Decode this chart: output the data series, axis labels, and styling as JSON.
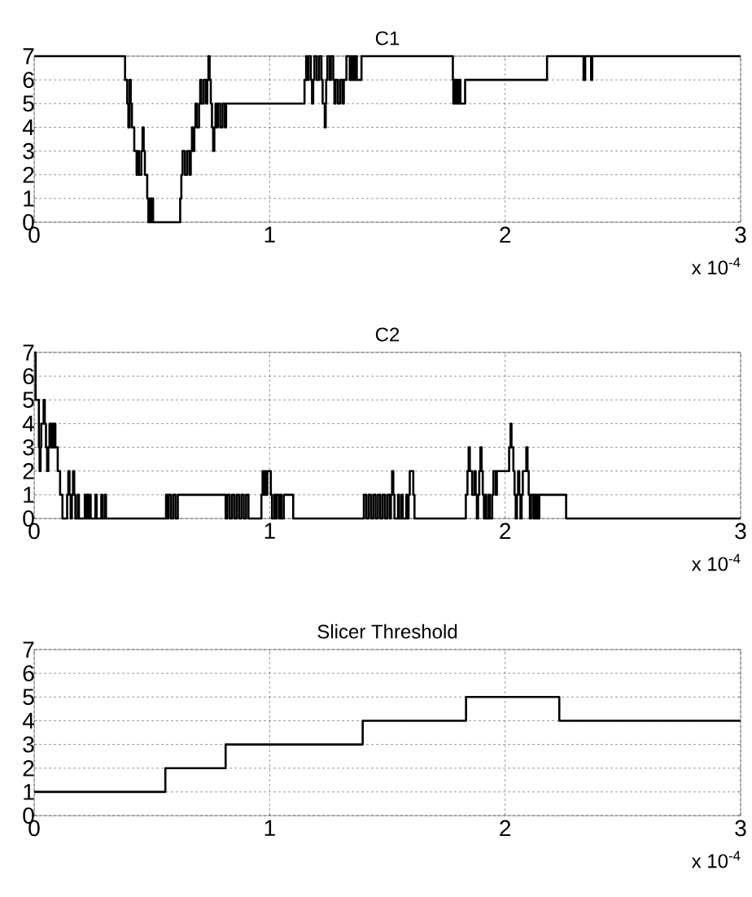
{
  "chart_data": [
    {
      "type": "step",
      "title": "C1",
      "xlabel": "x 10$^{-4}$",
      "xlim": [
        0,
        3
      ],
      "xticks": [
        0,
        1,
        2,
        3
      ],
      "ylim": [
        0,
        7
      ],
      "yticks": [
        0,
        1,
        2,
        3,
        4,
        5,
        6,
        7
      ],
      "grid": true,
      "series": [
        {
          "color": "#000000",
          "x": [
            0,
            0.386,
            0.395,
            0.4,
            0.405,
            0.41,
            0.415,
            0.425,
            0.435,
            0.44,
            0.445,
            0.455,
            0.46,
            0.465,
            0.47,
            0.48,
            0.485,
            0.49,
            0.495,
            0.5,
            0.505,
            0.62,
            0.625,
            0.63,
            0.64,
            0.65,
            0.66,
            0.665,
            0.67,
            0.675,
            0.68,
            0.685,
            0.69,
            0.7,
            0.705,
            0.71,
            0.72,
            0.73,
            0.735,
            0.74,
            0.745,
            0.75,
            0.755,
            0.76,
            0.765,
            0.77,
            0.775,
            0.78,
            0.79,
            0.8,
            0.81,
            0.815,
            1.148,
            1.155,
            1.16,
            1.165,
            1.175,
            1.18,
            1.185,
            1.19,
            1.2,
            1.21,
            1.22,
            1.225,
            1.234,
            1.238,
            1.24,
            1.245,
            1.255,
            1.26,
            1.27,
            1.275,
            1.28,
            1.29,
            1.3,
            1.31,
            1.315,
            1.326,
            1.34,
            1.345,
            1.35,
            1.355,
            1.36,
            1.365,
            1.37,
            1.39,
            1.778,
            1.78,
            1.785,
            1.79,
            1.795,
            1.8,
            1.805,
            1.81,
            1.83,
            2.178,
            2.333,
            2.34,
            2.365,
            2.37,
            3
          ],
          "values": [
            7,
            6,
            5,
            4,
            6,
            5,
            4,
            3,
            2,
            3,
            2,
            3,
            4,
            3,
            2,
            1,
            0,
            1,
            0,
            1,
            0,
            1,
            2,
            3,
            2,
            3,
            2,
            3,
            4,
            3,
            4,
            5,
            4,
            5,
            6,
            5,
            6,
            5,
            6,
            7,
            6,
            5,
            4,
            3,
            4,
            5,
            4,
            5,
            4,
            5,
            4,
            5,
            6,
            7,
            6,
            7,
            6,
            5,
            6,
            7,
            6,
            7,
            6,
            5,
            4,
            5,
            6,
            7,
            6,
            7,
            6,
            5,
            6,
            5,
            6,
            5,
            6,
            7,
            6,
            7,
            6,
            7,
            6,
            7,
            6,
            7,
            6,
            5,
            6,
            5,
            6,
            5,
            6,
            5,
            6,
            7,
            6,
            7,
            6,
            7,
            7
          ]
        }
      ]
    },
    {
      "type": "step",
      "title": "C2",
      "xlabel": "x 10$^{-4}$",
      "xlim": [
        0,
        3
      ],
      "xticks": [
        0,
        1,
        2,
        3
      ],
      "ylim": [
        0,
        7
      ],
      "yticks": [
        0,
        1,
        2,
        3,
        4,
        5,
        6,
        7
      ],
      "grid": true,
      "series": [
        {
          "color": "#000000",
          "x": [
            0,
            0.006,
            0.02,
            0.023,
            0.027,
            0.03,
            0.04,
            0.045,
            0.05,
            0.055,
            0.06,
            0.065,
            0.07,
            0.075,
            0.08,
            0.085,
            0.09,
            0.1,
            0.11,
            0.12,
            0.14,
            0.145,
            0.15,
            0.155,
            0.16,
            0.165,
            0.17,
            0.175,
            0.185,
            0.19,
            0.215,
            0.22,
            0.225,
            0.23,
            0.235,
            0.24,
            0.26,
            0.265,
            0.285,
            0.29,
            0.3,
            0.305,
            0.56,
            0.565,
            0.57,
            0.58,
            0.59,
            0.6,
            0.61,
            0.813,
            0.82,
            0.83,
            0.84,
            0.85,
            0.86,
            0.87,
            0.88,
            0.89,
            0.9,
            0.91,
            0.965,
            0.97,
            0.975,
            0.98,
            0.985,
            0.99,
            1.005,
            1.01,
            1.02,
            1.025,
            1.03,
            1.04,
            1.045,
            1.05,
            1.06,
            1.1,
            1.4,
            1.41,
            1.42,
            1.43,
            1.44,
            1.45,
            1.46,
            1.47,
            1.48,
            1.49,
            1.5,
            1.51,
            1.515,
            1.52,
            1.525,
            1.53,
            1.545,
            1.55,
            1.56,
            1.565,
            1.58,
            1.585,
            1.59,
            1.595,
            1.61,
            1.615,
            1.833,
            1.84,
            1.845,
            1.85,
            1.86,
            1.87,
            1.875,
            1.88,
            1.885,
            1.89,
            1.895,
            1.9,
            1.905,
            1.91,
            1.915,
            1.92,
            1.93,
            1.935,
            1.945,
            1.95,
            1.96,
            1.965,
            2.017,
            2.023,
            2.027,
            2.035,
            2.04,
            2.045,
            2.05,
            2.055,
            2.06,
            2.065,
            2.07,
            2.075,
            2.09,
            2.095,
            2.1,
            2.105,
            2.11,
            2.12,
            2.125,
            2.13,
            2.135,
            2.14,
            2.145,
            2.259,
            3
          ],
          "values": [
            7,
            5,
            3,
            2,
            3,
            4,
            5,
            4,
            3,
            2,
            3,
            4,
            3,
            4,
            3,
            4,
            3,
            2,
            1,
            0,
            1,
            2,
            1,
            0,
            1,
            2,
            1,
            0,
            1,
            0,
            1,
            0,
            1,
            0,
            1,
            0,
            1,
            0,
            1,
            0,
            1,
            0,
            1,
            0,
            1,
            0,
            1,
            0,
            1,
            0,
            1,
            0,
            1,
            0,
            1,
            0,
            1,
            0,
            1,
            0,
            1,
            2,
            1,
            2,
            1,
            2,
            1,
            0,
            1,
            0,
            1,
            0,
            1,
            0,
            1,
            0,
            1,
            0,
            1,
            0,
            1,
            0,
            1,
            0,
            1,
            0,
            1,
            0,
            1,
            2,
            1,
            0,
            1,
            0,
            1,
            0,
            1,
            0,
            1,
            2,
            1,
            0,
            1,
            2,
            3,
            2,
            1,
            2,
            1,
            0,
            1,
            2,
            3,
            2,
            1,
            0,
            1,
            0,
            1,
            0,
            1,
            2,
            1,
            2,
            3,
            4,
            3,
            2,
            1,
            0,
            1,
            2,
            1,
            0,
            1,
            2,
            3,
            2,
            1,
            0,
            1,
            0,
            1,
            0,
            1,
            0,
            1,
            0,
            0
          ]
        }
      ]
    },
    {
      "type": "step",
      "title": "Slicer Threshold",
      "xlabel": "x 10$^{-4}$",
      "xlim": [
        0,
        3
      ],
      "xticks": [
        0,
        1,
        2,
        3
      ],
      "ylim": [
        0,
        7
      ],
      "yticks": [
        0,
        1,
        2,
        3,
        4,
        5,
        6,
        7
      ],
      "grid": true,
      "series": [
        {
          "color": "#000000",
          "x": [
            0,
            0.557,
            0.813,
            1.395,
            1.834,
            2.23,
            3
          ],
          "values": [
            1,
            2,
            3,
            4,
            5,
            4,
            4
          ]
        }
      ]
    }
  ]
}
